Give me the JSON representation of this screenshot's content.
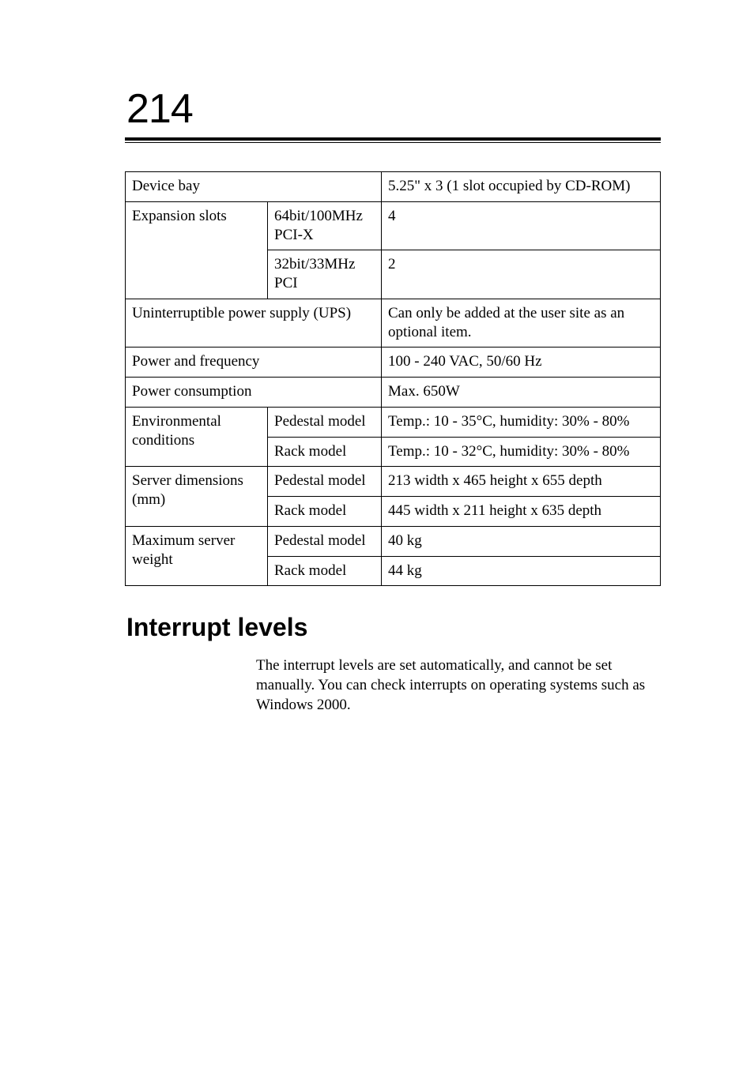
{
  "page_number": "214",
  "spec_table": {
    "rows": [
      {
        "cells": [
          "Device bay",
          "5.25\" x 3 (1 slot occupied by CD-ROM)"
        ],
        "spans": [
          2,
          1
        ]
      },
      {
        "cells": [
          "Expansion slots",
          "64bit/100MHz PCI-X",
          "4"
        ],
        "spans": [
          1,
          1,
          1
        ],
        "rowspan_first": 2
      },
      {
        "cells": [
          "32bit/33MHz PCI",
          "2"
        ],
        "spans": [
          1,
          1
        ]
      },
      {
        "cells": [
          "Uninterruptible power supply (UPS)",
          "Can only be added at the user site as an optional item."
        ],
        "spans": [
          2,
          1
        ]
      },
      {
        "cells": [
          "Power and frequency",
          "100 - 240 VAC, 50/60 Hz"
        ],
        "spans": [
          2,
          1
        ]
      },
      {
        "cells": [
          "Power consumption",
          "Max. 650W"
        ],
        "spans": [
          2,
          1
        ]
      },
      {
        "cells": [
          "Environmental conditions",
          "Pedestal model",
          "Temp.: 10 - 35°C, humidity: 30% - 80%"
        ],
        "spans": [
          1,
          1,
          1
        ],
        "rowspan_first": 2
      },
      {
        "cells": [
          "Rack model",
          "Temp.: 10 - 32°C, humidity: 30% - 80%"
        ],
        "spans": [
          1,
          1
        ]
      },
      {
        "cells": [
          "Server dimensions (mm)",
          "Pedestal model",
          "213 width x 465 height x 655 depth"
        ],
        "spans": [
          1,
          1,
          1
        ],
        "rowspan_first": 2
      },
      {
        "cells": [
          "Rack model",
          "445 width x 211 height x 635 depth"
        ],
        "spans": [
          1,
          1
        ]
      },
      {
        "cells": [
          "Maximum server weight",
          "Pedestal model",
          "40 kg"
        ],
        "spans": [
          1,
          1,
          1
        ],
        "rowspan_first": 2
      },
      {
        "cells": [
          "Rack model",
          "44 kg"
        ],
        "spans": [
          1,
          1
        ]
      }
    ]
  },
  "section_heading": "Interrupt levels",
  "body_paragraph": "The interrupt levels are set automatically, and cannot be set manually. You can check interrupts on operating systems such as Windows 2000."
}
